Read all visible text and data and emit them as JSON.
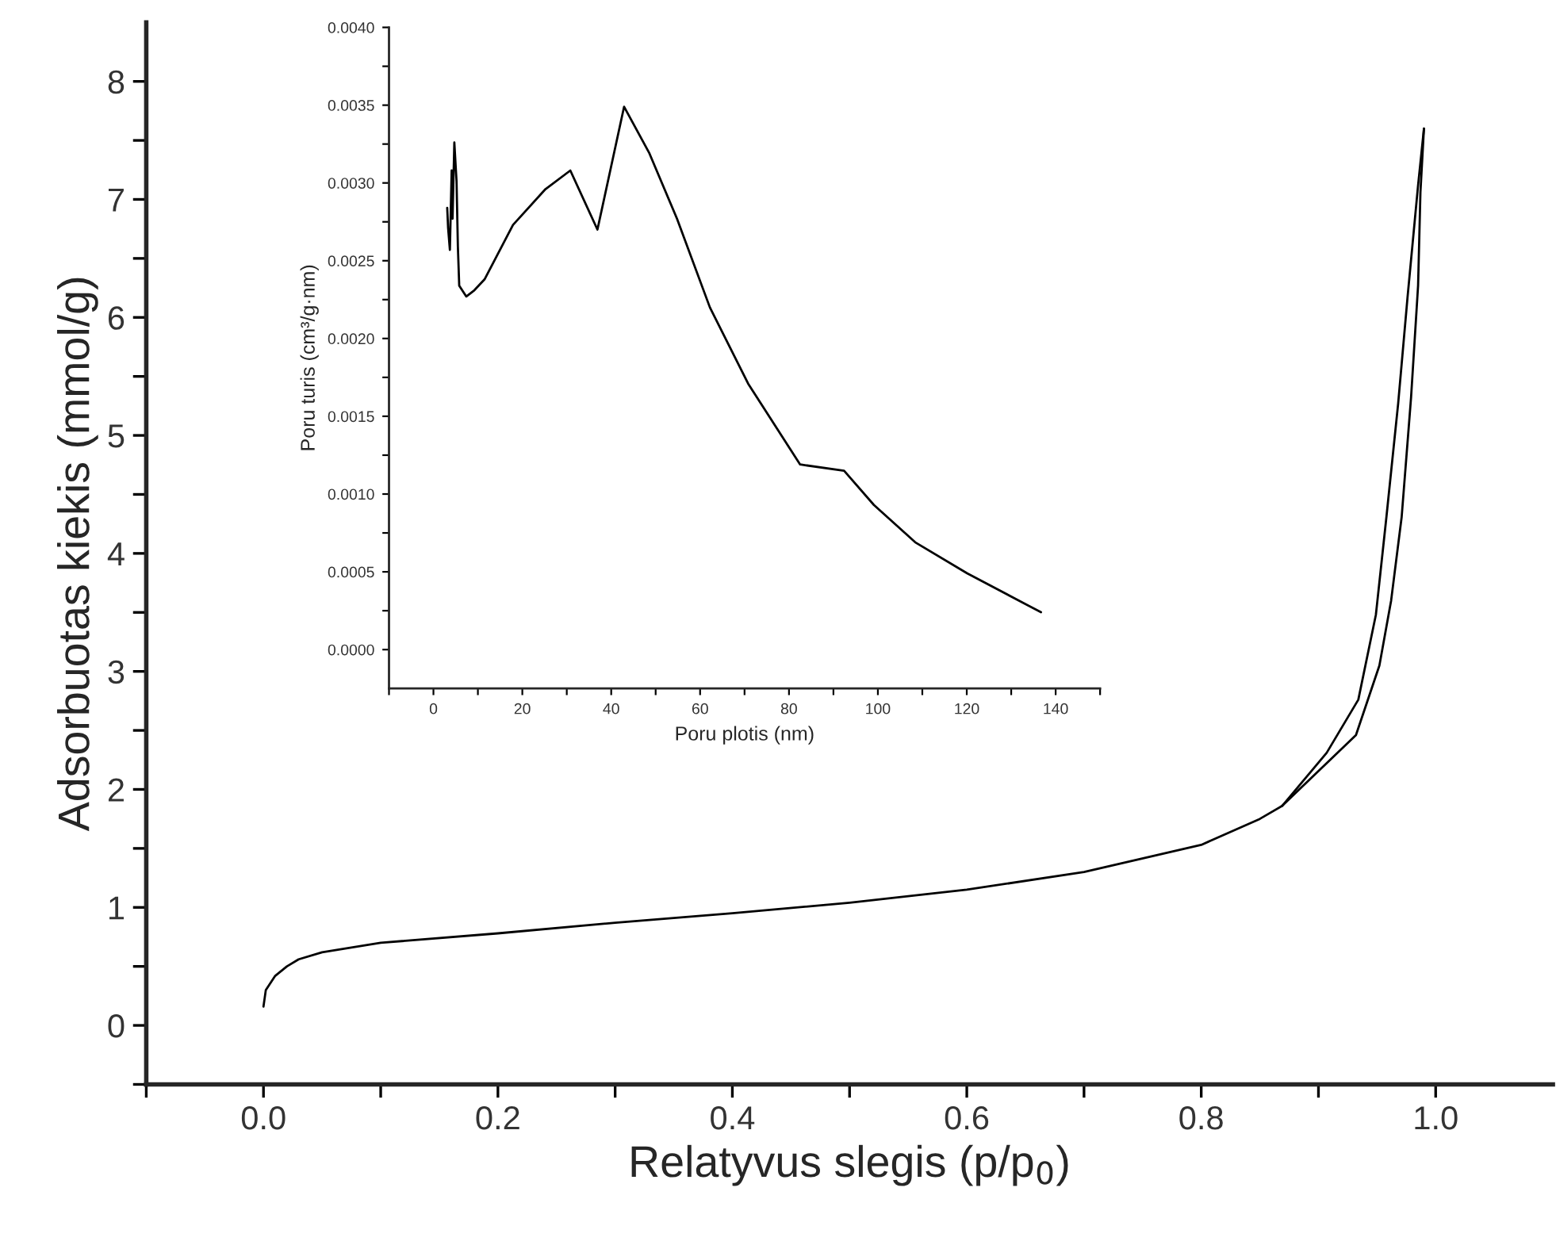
{
  "chart_data": [
    {
      "type": "line",
      "xlabel": "Relatyvus slegis (p/p$_{0}$)",
      "ylabel": "Adsorbuotas kiekis (mmol/g)",
      "xlim": [
        -0.1,
        1.1
      ],
      "ylim": [
        -0.5,
        8.5
      ],
      "xticks": [
        {
          "value": -0.1,
          "label": null
        },
        {
          "value": 0,
          "label": "0.0"
        },
        {
          "value": 0.1,
          "label": null
        },
        {
          "value": 0.2,
          "label": "0.2"
        },
        {
          "value": 0.3,
          "label": null
        },
        {
          "value": 0.4,
          "label": "0.4"
        },
        {
          "value": 0.5,
          "label": null
        },
        {
          "value": 0.6,
          "label": "0.6"
        },
        {
          "value": 0.7,
          "label": null
        },
        {
          "value": 0.8,
          "label": "0.8"
        },
        {
          "value": 0.9,
          "label": null
        },
        {
          "value": 1.0,
          "label": "1.0"
        }
      ],
      "yticks": [
        {
          "value": -0.5,
          "label": null
        },
        0,
        {
          "value": 0.5,
          "label": null
        },
        1,
        {
          "value": 1.5,
          "label": null
        },
        2,
        {
          "value": 2.5,
          "label": null
        },
        3,
        {
          "value": 3.5,
          "label": null
        },
        4,
        {
          "value": 4.5,
          "label": null
        },
        5,
        {
          "value": 5.5,
          "label": null
        },
        6,
        {
          "value": 6.5,
          "label": null
        },
        7,
        {
          "value": 7.5,
          "label": null
        },
        8
      ],
      "series": [
        {
          "color": "#000000",
          "x": [
            0.0,
            0.002,
            0.01,
            0.02,
            0.03,
            0.05,
            0.1,
            0.2,
            0.3,
            0.4,
            0.5,
            0.6,
            0.7,
            0.8,
            0.85,
            0.869,
            0.932,
            0.952,
            0.962,
            0.971,
            0.979,
            0.985,
            0.987,
            0.99
          ],
          "values": [
            0.16,
            0.3,
            0.42,
            0.5,
            0.56,
            0.62,
            0.7,
            0.78,
            0.87,
            0.95,
            1.04,
            1.15,
            1.3,
            1.53,
            1.75,
            1.86,
            2.46,
            3.05,
            3.6,
            4.31,
            5.32,
            6.27,
            7.06,
            7.6
          ]
        },
        {
          "color": "#000000",
          "x": [
            0.99,
            0.985,
            0.976,
            0.968,
            0.958,
            0.949,
            0.934,
            0.907,
            0.869
          ],
          "values": [
            7.6,
            7.12,
            6.17,
            5.27,
            4.31,
            3.48,
            2.76,
            2.31,
            1.86
          ]
        }
      ]
    },
    {
      "type": "line",
      "xlabel": "Poru plotis (nm)",
      "ylabel": "Poru turis (cm³/g·nm)",
      "xlim": [
        -10,
        150
      ],
      "ylim": [
        -0.00025,
        0.004
      ],
      "xticks": [
        {
          "value": -10,
          "label": null
        },
        0,
        {
          "value": 10,
          "label": null
        },
        20,
        {
          "value": 30,
          "label": null
        },
        40,
        {
          "value": 50,
          "label": null
        },
        60,
        {
          "value": 70,
          "label": null
        },
        80,
        {
          "value": 90,
          "label": null
        },
        100,
        {
          "value": 110,
          "label": null
        },
        120,
        {
          "value": 130,
          "label": null
        },
        140,
        {
          "value": 150,
          "label": null
        }
      ],
      "yticks": [
        {
          "value": 0,
          "label": "0.0000"
        },
        {
          "value": 0.00025,
          "label": null
        },
        {
          "value": 0.0005,
          "label": "0.0005"
        },
        {
          "value": 0.00075,
          "label": null
        },
        {
          "value": 0.001,
          "label": "0.0010"
        },
        {
          "value": 0.00125,
          "label": null
        },
        {
          "value": 0.0015,
          "label": "0.0015"
        },
        {
          "value": 0.00175,
          "label": null
        },
        {
          "value": 0.002,
          "label": "0.0020"
        },
        {
          "value": 0.00225,
          "label": null
        },
        {
          "value": 0.0025,
          "label": "0.0025"
        },
        {
          "value": 0.00275,
          "label": null
        },
        {
          "value": 0.003,
          "label": "0.0030"
        },
        {
          "value": 0.00325,
          "label": null
        },
        {
          "value": 0.0035,
          "label": "0.0035"
        },
        {
          "value": 0.00375,
          "label": null
        },
        {
          "value": 0.004,
          "label": "0.0040"
        }
      ],
      "series": [
        {
          "color": "#000000",
          "x": [
            3.1,
            3.3,
            3.7,
            4.1,
            4.3,
            4.7,
            5.2,
            5.5,
            5.8,
            7.4,
            9.2,
            11.5,
            17.9,
            25.2,
            30.8,
            36.9,
            42.9,
            48.6,
            54.8,
            62.2,
            70.8,
            82.5,
            92.4,
            99.1,
            108.4,
            120.1,
            136.7
          ],
          "values": [
            0.00284,
            0.00271,
            0.00257,
            0.00308,
            0.00277,
            0.00326,
            0.00301,
            0.00259,
            0.00234,
            0.00227,
            0.00231,
            0.00238,
            0.00273,
            0.00296,
            0.00308,
            0.0027,
            0.00349,
            0.00319,
            0.00277,
            0.0022,
            0.00171,
            0.00119,
            0.00115,
            0.00093,
            0.00069,
            0.00049,
            0.00024
          ]
        }
      ]
    }
  ]
}
